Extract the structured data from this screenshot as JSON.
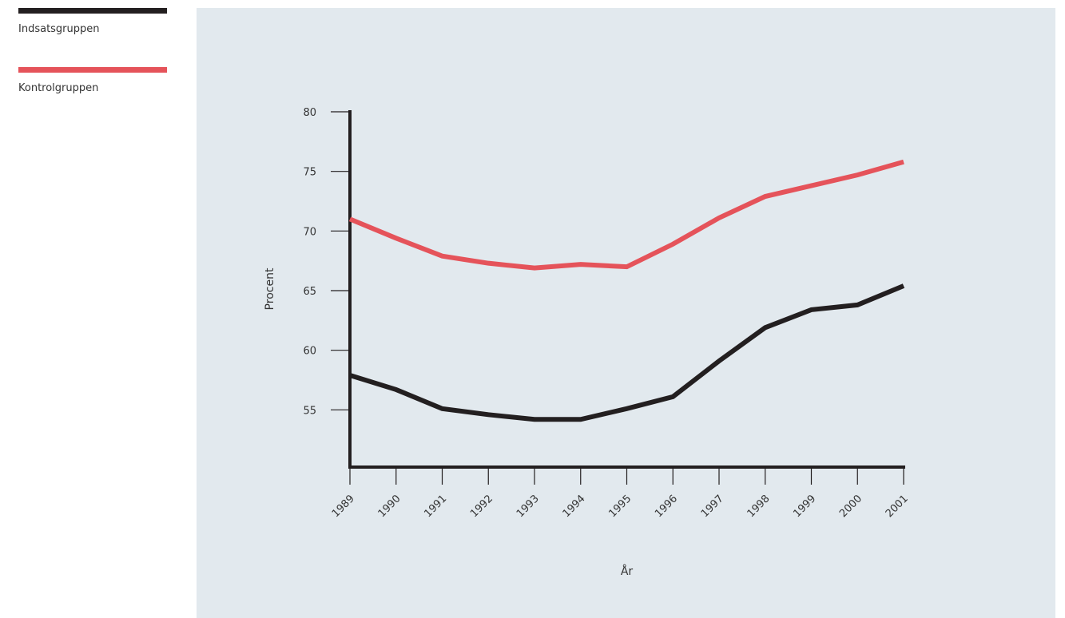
{
  "legend": {
    "items": [
      {
        "label": "Indsatsgruppen",
        "color": "#231f20"
      },
      {
        "label": "Kontrolgruppen",
        "color": "#e5535a"
      }
    ]
  },
  "chart_data": {
    "type": "line",
    "x": [
      "1989",
      "1990",
      "1991",
      "1992",
      "1993",
      "1994",
      "1995",
      "1996",
      "1997",
      "1998",
      "1999",
      "2000",
      "2001"
    ],
    "series": [
      {
        "name": "Indsatsgruppen",
        "color": "#231f20",
        "values": [
          57.9,
          56.7,
          55.1,
          54.6,
          54.2,
          54.2,
          55.1,
          56.1,
          59.1,
          61.9,
          63.4,
          63.8,
          65.4
        ]
      },
      {
        "name": "Kontrolgruppen",
        "color": "#e5535a",
        "values": [
          71.0,
          69.4,
          67.9,
          67.3,
          66.9,
          67.2,
          67.0,
          68.9,
          71.1,
          72.9,
          73.8,
          74.7,
          75.8
        ]
      }
    ],
    "xlabel": "År",
    "ylabel": "Procent",
    "ylim": [
      50,
      80
    ],
    "yticks": [
      55,
      60,
      65,
      70,
      75,
      80
    ],
    "grid": false,
    "legend_position": "top-left"
  }
}
